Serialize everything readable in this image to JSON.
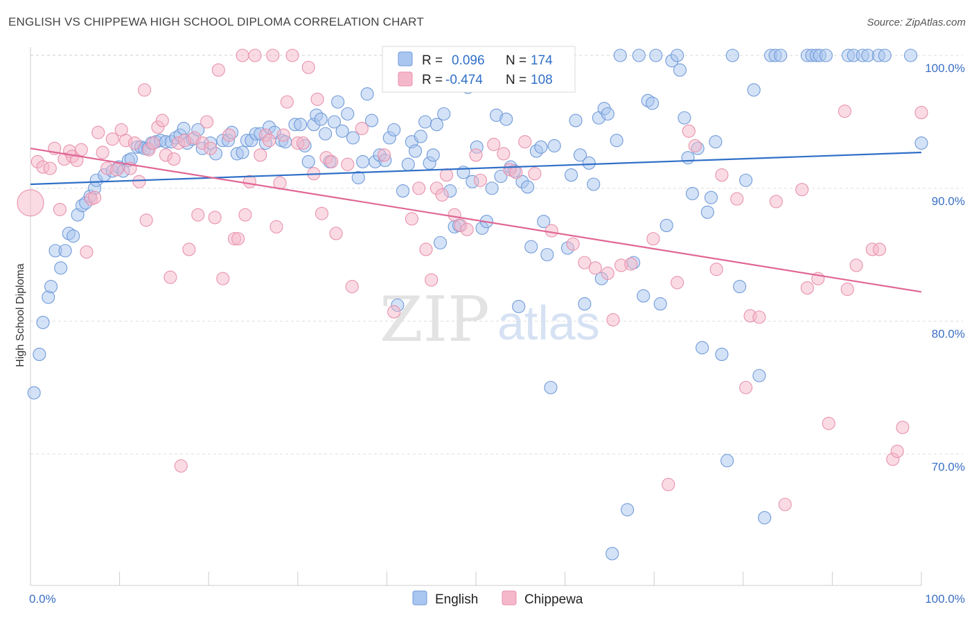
{
  "title": "ENGLISH VS CHIPPEWA HIGH SCHOOL DIPLOMA CORRELATION CHART",
  "source": "Source: ZipAtlas.com",
  "watermark": {
    "zip": "ZIP",
    "atlas": "atlas"
  },
  "colors": {
    "english_fill": "#a9c6f0",
    "english_stroke": "#6f9ad8",
    "english_line": "#2f6fc7",
    "chippewa_fill": "#f5b8ca",
    "chippewa_stroke": "#e891ad",
    "chippewa_line": "#e06694",
    "grid": "#dddddd",
    "axis_text": "#3a6fc4"
  },
  "legend": {
    "rows": [
      {
        "r_label": "R =",
        "r_value": "0.096",
        "n_label": "N =",
        "n_value": "174"
      },
      {
        "r_label": "R =",
        "r_value": "-0.474",
        "n_label": "N =",
        "n_value": "108"
      }
    ]
  },
  "bottom_legend": [
    "English",
    "Chippewa"
  ],
  "chart_data": {
    "type": "scatter",
    "title": "ENGLISH VS CHIPPEWA HIGH SCHOOL DIPLOMA CORRELATION CHART",
    "xlabel": "",
    "ylabel": "High School Diploma",
    "xlim": [
      0,
      100
    ],
    "ylim": [
      60.5,
      101.5
    ],
    "x_tick_labels": [
      "0.0%",
      "100.0%"
    ],
    "y_ticks": [
      70,
      80,
      90,
      100
    ],
    "y_tick_labels": [
      "70.0%",
      "80.0%",
      "90.0%",
      "100.0%"
    ],
    "series": [
      {
        "name": "English",
        "trend": {
          "x": [
            0,
            100
          ],
          "y": [
            90.3,
            92.7
          ]
        },
        "points": [
          [
            0.4,
            74.6
          ],
          [
            1.0,
            77.5
          ],
          [
            1.4,
            79.9
          ],
          [
            2.0,
            81.8
          ],
          [
            2.3,
            82.6
          ],
          [
            2.8,
            85.3
          ],
          [
            3.4,
            84.0
          ],
          [
            3.9,
            85.3
          ],
          [
            4.3,
            86.6
          ],
          [
            4.8,
            86.4
          ],
          [
            5.3,
            88.0
          ],
          [
            5.8,
            88.7
          ],
          [
            6.2,
            88.9
          ],
          [
            6.7,
            89.4
          ],
          [
            7.2,
            90.0
          ],
          [
            7.4,
            90.6
          ],
          [
            8.3,
            91.0
          ],
          [
            9.2,
            91.3
          ],
          [
            9.9,
            91.6
          ],
          [
            10.4,
            91.3
          ],
          [
            11.0,
            92.1
          ],
          [
            11.3,
            92.2
          ],
          [
            12.0,
            93.1
          ],
          [
            12.4,
            93.1
          ],
          [
            12.8,
            93.0
          ],
          [
            13.2,
            93.0
          ],
          [
            13.6,
            93.4
          ],
          [
            14.1,
            93.5
          ],
          [
            14.6,
            93.6
          ],
          [
            15.2,
            93.5
          ],
          [
            15.8,
            93.5
          ],
          [
            16.3,
            93.8
          ],
          [
            16.8,
            94.0
          ],
          [
            17.2,
            94.5
          ],
          [
            17.6,
            93.4
          ],
          [
            18.2,
            93.7
          ],
          [
            18.8,
            94.4
          ],
          [
            19.3,
            93.0
          ],
          [
            20.2,
            93.4
          ],
          [
            20.8,
            92.6
          ],
          [
            21.6,
            93.6
          ],
          [
            22.2,
            93.6
          ],
          [
            22.6,
            94.2
          ],
          [
            23.2,
            92.6
          ],
          [
            23.8,
            92.7
          ],
          [
            24.3,
            93.6
          ],
          [
            24.8,
            93.6
          ],
          [
            25.3,
            94.1
          ],
          [
            25.8,
            94.1
          ],
          [
            26.4,
            93.4
          ],
          [
            26.8,
            94.6
          ],
          [
            27.4,
            94.2
          ],
          [
            28.2,
            93.6
          ],
          [
            28.6,
            93.5
          ],
          [
            29.7,
            94.8
          ],
          [
            30.3,
            94.8
          ],
          [
            30.8,
            93.2
          ],
          [
            31.2,
            92.0
          ],
          [
            31.8,
            94.8
          ],
          [
            32.1,
            95.5
          ],
          [
            32.6,
            95.2
          ],
          [
            33.1,
            94.1
          ],
          [
            33.6,
            92.0
          ],
          [
            34.1,
            95.0
          ],
          [
            34.5,
            96.5
          ],
          [
            35.0,
            94.3
          ],
          [
            35.6,
            95.6
          ],
          [
            36.2,
            93.8
          ],
          [
            36.8,
            90.8
          ],
          [
            37.3,
            92.0
          ],
          [
            37.8,
            97.1
          ],
          [
            38.3,
            95.1
          ],
          [
            38.7,
            92.0
          ],
          [
            39.2,
            92.5
          ],
          [
            39.8,
            92.1
          ],
          [
            40.3,
            93.8
          ],
          [
            40.8,
            94.4
          ],
          [
            41.2,
            81.2
          ],
          [
            41.8,
            89.8
          ],
          [
            42.4,
            91.8
          ],
          [
            42.8,
            93.5
          ],
          [
            43.2,
            92.8
          ],
          [
            43.8,
            93.9
          ],
          [
            44.3,
            95.0
          ],
          [
            44.8,
            91.9
          ],
          [
            45.2,
            92.5
          ],
          [
            45.6,
            94.8
          ],
          [
            46.0,
            85.9
          ],
          [
            46.4,
            95.6
          ],
          [
            47.1,
            89.8
          ],
          [
            47.6,
            87.1
          ],
          [
            48.1,
            87.2
          ],
          [
            48.6,
            91.2
          ],
          [
            49.1,
            97.6
          ],
          [
            49.6,
            90.5
          ],
          [
            50.1,
            93.1
          ],
          [
            50.7,
            87.0
          ],
          [
            51.2,
            87.5
          ],
          [
            51.8,
            90.0
          ],
          [
            52.3,
            95.5
          ],
          [
            52.8,
            90.9
          ],
          [
            53.4,
            95.2
          ],
          [
            53.9,
            91.6
          ],
          [
            54.3,
            91.3
          ],
          [
            54.8,
            81.1
          ],
          [
            55.2,
            90.5
          ],
          [
            55.8,
            90.1
          ],
          [
            56.2,
            85.6
          ],
          [
            56.8,
            92.8
          ],
          [
            57.3,
            93.1
          ],
          [
            57.6,
            87.5
          ],
          [
            58.0,
            85.0
          ],
          [
            58.4,
            75.0
          ],
          [
            58.8,
            93.2
          ],
          [
            59.4,
            97.8
          ],
          [
            60.3,
            85.5
          ],
          [
            60.7,
            91.0
          ],
          [
            61.2,
            95.1
          ],
          [
            61.7,
            92.5
          ],
          [
            62.2,
            81.3
          ],
          [
            62.7,
            91.9
          ],
          [
            63.2,
            90.3
          ],
          [
            63.8,
            95.3
          ],
          [
            64.1,
            83.2
          ],
          [
            64.4,
            96.0
          ],
          [
            64.8,
            95.6
          ],
          [
            65.3,
            62.5
          ],
          [
            65.8,
            93.6
          ],
          [
            66.2,
            100.0
          ],
          [
            67.0,
            65.8
          ],
          [
            67.7,
            84.4
          ],
          [
            68.3,
            100.0
          ],
          [
            68.8,
            81.9
          ],
          [
            69.3,
            96.6
          ],
          [
            69.8,
            96.4
          ],
          [
            70.2,
            100.0
          ],
          [
            70.7,
            81.3
          ],
          [
            71.4,
            87.2
          ],
          [
            72.0,
            99.6
          ],
          [
            72.6,
            100.0
          ],
          [
            72.9,
            98.9
          ],
          [
            73.4,
            95.3
          ],
          [
            73.8,
            92.3
          ],
          [
            74.3,
            89.6
          ],
          [
            74.9,
            93.0
          ],
          [
            75.4,
            78.0
          ],
          [
            76.0,
            88.2
          ],
          [
            76.4,
            89.3
          ],
          [
            76.9,
            93.5
          ],
          [
            77.6,
            77.5
          ],
          [
            78.2,
            69.5
          ],
          [
            78.8,
            100.0
          ],
          [
            79.6,
            82.6
          ],
          [
            80.3,
            90.6
          ],
          [
            81.2,
            97.4
          ],
          [
            81.8,
            75.9
          ],
          [
            82.4,
            65.2
          ],
          [
            83.1,
            100.0
          ],
          [
            83.6,
            100.0
          ],
          [
            84.2,
            100.0
          ],
          [
            87.2,
            100.0
          ],
          [
            87.7,
            100.0
          ],
          [
            88.2,
            100.0
          ],
          [
            88.6,
            100.0
          ],
          [
            89.3,
            100.0
          ],
          [
            91.8,
            100.0
          ],
          [
            92.4,
            100.0
          ],
          [
            93.4,
            100.0
          ],
          [
            94.0,
            100.0
          ],
          [
            95.2,
            100.0
          ],
          [
            95.9,
            100.0
          ],
          [
            98.8,
            100.0
          ],
          [
            100.0,
            93.4
          ]
        ]
      },
      {
        "name": "Chippewa",
        "trend": {
          "x": [
            0,
            100
          ],
          "y": [
            93.0,
            82.2
          ]
        },
        "points": [
          [
            0.0,
            88.9
          ],
          [
            0.8,
            92.0
          ],
          [
            1.4,
            91.6
          ],
          [
            2.2,
            91.5
          ],
          [
            2.7,
            93.0
          ],
          [
            3.3,
            88.4
          ],
          [
            3.8,
            92.2
          ],
          [
            4.4,
            92.8
          ],
          [
            4.7,
            92.4
          ],
          [
            5.2,
            92.1
          ],
          [
            5.7,
            92.9
          ],
          [
            6.3,
            85.2
          ],
          [
            6.8,
            89.2
          ],
          [
            7.2,
            89.3
          ],
          [
            7.6,
            94.2
          ],
          [
            8.1,
            92.7
          ],
          [
            8.6,
            91.5
          ],
          [
            9.2,
            93.7
          ],
          [
            9.7,
            91.4
          ],
          [
            10.2,
            94.4
          ],
          [
            10.7,
            93.6
          ],
          [
            11.2,
            91.5
          ],
          [
            11.7,
            93.4
          ],
          [
            12.2,
            90.5
          ],
          [
            12.8,
            97.4
          ],
          [
            13.0,
            87.6
          ],
          [
            13.3,
            92.9
          ],
          [
            13.8,
            93.4
          ],
          [
            14.3,
            94.6
          ],
          [
            14.8,
            95.1
          ],
          [
            15.2,
            92.5
          ],
          [
            15.7,
            83.3
          ],
          [
            16.1,
            92.2
          ],
          [
            16.6,
            93.4
          ],
          [
            16.9,
            69.1
          ],
          [
            17.3,
            93.6
          ],
          [
            17.8,
            85.4
          ],
          [
            18.4,
            93.8
          ],
          [
            18.8,
            88.0
          ],
          [
            19.3,
            93.4
          ],
          [
            19.8,
            95.0
          ],
          [
            20.2,
            93.0
          ],
          [
            20.7,
            87.8
          ],
          [
            21.1,
            98.9
          ],
          [
            21.6,
            83.2
          ],
          [
            22.3,
            94.0
          ],
          [
            22.9,
            86.2
          ],
          [
            23.3,
            86.2
          ],
          [
            23.8,
            100.0
          ],
          [
            24.1,
            88.0
          ],
          [
            24.6,
            90.5
          ],
          [
            25.2,
            100.0
          ],
          [
            25.8,
            92.5
          ],
          [
            26.4,
            94.0
          ],
          [
            26.8,
            93.6
          ],
          [
            27.2,
            100.0
          ],
          [
            27.6,
            87.1
          ],
          [
            28.0,
            90.4
          ],
          [
            28.4,
            94.0
          ],
          [
            28.8,
            96.5
          ],
          [
            29.4,
            100.0
          ],
          [
            30.0,
            93.4
          ],
          [
            30.6,
            93.4
          ],
          [
            31.2,
            99.1
          ],
          [
            31.8,
            91.1
          ],
          [
            32.2,
            96.7
          ],
          [
            32.7,
            88.1
          ],
          [
            33.2,
            92.3
          ],
          [
            33.8,
            92.0
          ],
          [
            34.3,
            86.6
          ],
          [
            35.6,
            91.8
          ],
          [
            36.1,
            82.6
          ],
          [
            37.2,
            94.5
          ],
          [
            39.7,
            92.5
          ],
          [
            40.8,
            80.7
          ],
          [
            42.8,
            87.7
          ],
          [
            43.6,
            90.0
          ],
          [
            44.4,
            85.4
          ],
          [
            45.0,
            83.1
          ],
          [
            45.6,
            90.0
          ],
          [
            46.2,
            89.5
          ],
          [
            46.7,
            91.0
          ],
          [
            47.6,
            88.0
          ],
          [
            48.3,
            87.2
          ],
          [
            49.0,
            86.9
          ],
          [
            50.0,
            92.5
          ],
          [
            50.5,
            90.6
          ],
          [
            52.0,
            93.3
          ],
          [
            53.1,
            92.6
          ],
          [
            53.8,
            91.4
          ],
          [
            54.5,
            91.2
          ],
          [
            55.5,
            93.5
          ],
          [
            56.6,
            91.1
          ],
          [
            58.5,
            86.8
          ],
          [
            60.9,
            85.8
          ],
          [
            62.2,
            84.4
          ],
          [
            63.4,
            84.0
          ],
          [
            64.8,
            83.6
          ],
          [
            65.4,
            80.1
          ],
          [
            66.3,
            84.2
          ],
          [
            67.4,
            84.3
          ],
          [
            69.9,
            86.2
          ],
          [
            71.6,
            67.7
          ],
          [
            72.6,
            82.9
          ],
          [
            73.9,
            94.3
          ],
          [
            74.6,
            93.2
          ],
          [
            77.0,
            83.9
          ],
          [
            77.6,
            91.0
          ],
          [
            79.3,
            89.2
          ],
          [
            80.3,
            75.0
          ],
          [
            80.8,
            80.4
          ],
          [
            81.8,
            80.3
          ],
          [
            83.7,
            89.0
          ],
          [
            84.7,
            66.2
          ],
          [
            86.6,
            89.9
          ],
          [
            87.2,
            82.5
          ],
          [
            88.4,
            83.2
          ],
          [
            89.6,
            72.3
          ],
          [
            91.4,
            95.8
          ],
          [
            91.7,
            82.4
          ],
          [
            92.7,
            84.2
          ],
          [
            94.5,
            85.4
          ],
          [
            95.3,
            85.4
          ],
          [
            96.8,
            69.6
          ],
          [
            97.3,
            70.2
          ],
          [
            97.9,
            72.0
          ],
          [
            100.0,
            95.7
          ]
        ]
      }
    ]
  }
}
